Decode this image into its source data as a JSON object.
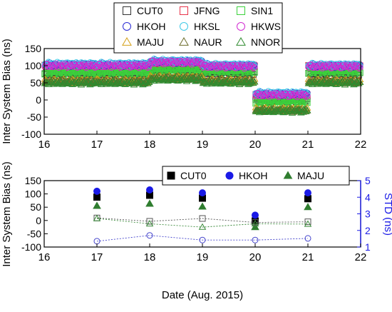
{
  "chart_data": [
    {
      "type": "scatter",
      "ylabel": "Inter System Bias (ns)",
      "xlim": [
        16,
        22
      ],
      "ylim": [
        -100,
        150
      ],
      "x_ticks": [
        "16",
        "17",
        "18",
        "19",
        "20",
        "21",
        "22"
      ],
      "y_ticks": [
        "-100",
        "-50",
        "0",
        "50",
        "100",
        "150"
      ],
      "grid": false,
      "legend": "top",
      "series": [
        {
          "name": "CUT0",
          "marker": "square-open",
          "color": "#333333",
          "segments": [
            [
              16.0,
              17.0,
              75
            ],
            [
              17.0,
              18.0,
              75
            ],
            [
              18.0,
              19.0,
              85
            ],
            [
              19.0,
              20.0,
              78
            ],
            [
              20.0,
              21.0,
              0
            ],
            [
              21.0,
              22.0,
              76
            ]
          ]
        },
        {
          "name": "JFNG",
          "marker": "square-open",
          "color": "#e8334a",
          "segments": [
            [
              16.0,
              17.0,
              98
            ],
            [
              17.0,
              18.0,
              98
            ],
            [
              18.0,
              19.0,
              105
            ],
            [
              19.0,
              20.0,
              97
            ],
            [
              20.0,
              21.0,
              12
            ],
            [
              21.0,
              22.0,
              97
            ]
          ]
        },
        {
          "name": "SIN1",
          "marker": "square-open",
          "color": "#3cd13c",
          "segments": [
            [
              16.0,
              17.0,
              80
            ],
            [
              17.0,
              18.0,
              80
            ],
            [
              18.0,
              19.0,
              88
            ],
            [
              19.0,
              20.0,
              83
            ],
            [
              20.0,
              21.0,
              -5
            ],
            [
              21.0,
              22.0,
              82
            ]
          ]
        },
        {
          "name": "HKOH",
          "marker": "circle-open",
          "color": "#2a2ad4",
          "segments": [
            [
              16.0,
              17.0,
              103
            ],
            [
              17.0,
              18.0,
              103
            ],
            [
              18.0,
              19.0,
              112
            ],
            [
              19.0,
              20.0,
              100
            ],
            [
              20.0,
              21.0,
              18
            ],
            [
              21.0,
              22.0,
              100
            ]
          ]
        },
        {
          "name": "HKSL",
          "marker": "circle-open",
          "color": "#3cc8e6",
          "segments": [
            [
              16.0,
              17.0,
              105
            ],
            [
              17.0,
              18.0,
              105
            ],
            [
              18.0,
              19.0,
              114
            ],
            [
              19.0,
              20.0,
              102
            ],
            [
              20.0,
              21.0,
              20
            ],
            [
              21.0,
              22.0,
              102
            ]
          ]
        },
        {
          "name": "HKWS",
          "marker": "circle-open",
          "color": "#d12ad1",
          "segments": [
            [
              16.0,
              17.0,
              100
            ],
            [
              17.0,
              18.0,
              100
            ],
            [
              18.0,
              19.0,
              110
            ],
            [
              19.0,
              20.0,
              98
            ],
            [
              20.0,
              21.0,
              15
            ],
            [
              21.0,
              22.0,
              98
            ]
          ]
        },
        {
          "name": "MAJU",
          "marker": "triangle-open",
          "color": "#d4a017",
          "segments": [
            [
              16.0,
              17.0,
              55
            ],
            [
              17.0,
              18.0,
              55
            ],
            [
              18.0,
              19.0,
              65
            ],
            [
              19.0,
              20.0,
              56
            ],
            [
              20.0,
              21.0,
              -28
            ],
            [
              21.0,
              22.0,
              55
            ]
          ]
        },
        {
          "name": "NAUR",
          "marker": "triangle-open",
          "color": "#6b6b2a",
          "segments": [
            [
              16.0,
              17.0,
              53
            ],
            [
              17.0,
              18.0,
              53
            ],
            [
              18.0,
              19.0,
              63
            ],
            [
              19.0,
              20.0,
              54
            ],
            [
              20.0,
              21.0,
              -30
            ],
            [
              21.0,
              22.0,
              53
            ]
          ]
        },
        {
          "name": "NNOR",
          "marker": "triangle-open",
          "color": "#2f8a2f",
          "segments": [
            [
              16.0,
              17.0,
              50
            ],
            [
              17.0,
              18.0,
              50
            ],
            [
              18.0,
              19.0,
              60
            ],
            [
              19.0,
              20.0,
              51
            ],
            [
              20.0,
              21.0,
              -32
            ],
            [
              21.0,
              22.0,
              50
            ]
          ]
        }
      ]
    },
    {
      "type": "scatter",
      "xlabel": "Date (Aug. 2015)",
      "ylabel": "Inter System Bias (ns)",
      "y2label": "STD (ns)",
      "xlim": [
        16,
        22
      ],
      "ylim": [
        -100,
        150
      ],
      "y2lim": [
        1,
        5
      ],
      "x_ticks": [
        "16",
        "17",
        "18",
        "19",
        "20",
        "21",
        "22"
      ],
      "y_ticks": [
        "-100",
        "-50",
        "0",
        "50",
        "100",
        "150"
      ],
      "y2_ticks": [
        "1",
        "2",
        "3",
        "4",
        "5"
      ],
      "legend": "top-right",
      "x": [
        17,
        18,
        19,
        20,
        21
      ],
      "series": [
        {
          "name": "CUT0",
          "marker": "square",
          "color": "#000000",
          "axis": "left",
          "values": [
            88,
            95,
            84,
            -2,
            82
          ]
        },
        {
          "name": "HKOH",
          "marker": "circle",
          "color": "#1a1ae6",
          "axis": "left",
          "values": [
            110,
            115,
            104,
            20,
            104
          ]
        },
        {
          "name": "MAJU",
          "marker": "triangle",
          "color": "#2f7d2f",
          "axis": "left",
          "values": [
            55,
            63,
            52,
            -25,
            50
          ]
        },
        {
          "marker": "square-open",
          "color": "#555555",
          "axis": "right",
          "style": "dashed",
          "values": [
            2.75,
            2.55,
            2.72,
            2.48,
            2.52
          ]
        },
        {
          "marker": "circle-open",
          "color": "#4444cc",
          "axis": "right",
          "style": "dashed",
          "values": [
            1.35,
            1.7,
            1.42,
            1.42,
            1.52
          ]
        },
        {
          "marker": "triangle-open",
          "color": "#3a8a3a",
          "axis": "right",
          "style": "dashed",
          "values": [
            2.72,
            2.4,
            2.2,
            2.4,
            2.38
          ]
        }
      ]
    }
  ]
}
